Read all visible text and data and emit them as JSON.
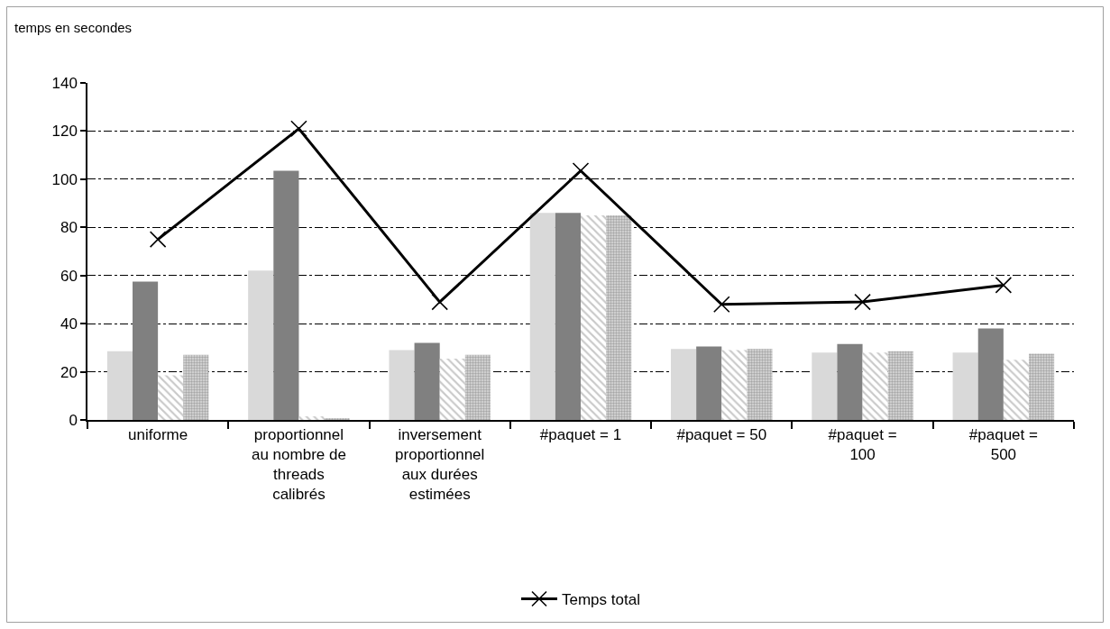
{
  "chart_data": {
    "type": "bar",
    "ylabel": "temps en secondes",
    "categories": [
      "uniforme",
      "proportionnel au nombre de threads calibrés",
      "inversement proportionnel aux durées estimées",
      "#paquet = 1",
      "#paquet = 50",
      "#paquet = 100",
      "#paquet = 500"
    ],
    "series": [
      {
        "color": "#d9d9d9",
        "values": [
          28.5,
          62,
          29,
          86,
          29.5,
          28,
          28
        ]
      },
      {
        "color": "#808080",
        "values": [
          57.5,
          103.5,
          32,
          86,
          30.5,
          31.5,
          38
        ]
      },
      {
        "color": "#c8c8c8",
        "values": [
          18.5,
          1.5,
          25.5,
          85,
          29,
          28,
          25
        ]
      },
      {
        "color": "#a6a6a6",
        "values": [
          27,
          0.5,
          27,
          85,
          29.5,
          28.5,
          27.5
        ]
      },
      {
        "type": "line",
        "name": "Temps total",
        "color": "#000000",
        "values": [
          75,
          121,
          49,
          103.5,
          48,
          49,
          56
        ]
      }
    ],
    "ylim": [
      0,
      140
    ],
    "yticks": [
      0,
      20,
      40,
      60,
      80,
      100,
      120,
      140
    ],
    "grid": "y",
    "legend": "bottom",
    "marker": "cross",
    "line_style": "solid"
  }
}
